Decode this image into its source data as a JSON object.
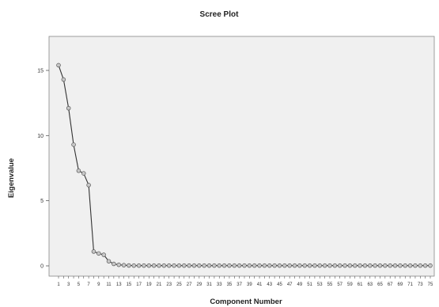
{
  "chart_data": {
    "type": "line",
    "title": "Scree Plot",
    "xlabel": "Component Number",
    "ylabel": "Eigenvalue",
    "ylim": [
      0,
      16
    ],
    "yticks": [
      0,
      5,
      10,
      15
    ],
    "x": [
      1,
      2,
      3,
      4,
      5,
      6,
      7,
      8,
      9,
      10,
      11,
      12,
      13,
      14,
      15,
      16,
      17,
      18,
      19,
      20,
      21,
      22,
      23,
      24,
      25,
      26,
      27,
      28,
      29,
      30,
      31,
      32,
      33,
      34,
      35,
      36,
      37,
      38,
      39,
      40,
      41,
      42,
      43,
      44,
      45,
      46,
      47,
      48,
      49,
      50,
      51,
      52,
      53,
      54,
      55,
      56,
      57,
      58,
      59,
      60,
      61,
      62,
      63,
      64,
      65,
      66,
      67,
      68,
      69,
      70,
      71,
      72,
      73,
      74,
      75
    ],
    "xtick_labels": [
      "1",
      "3",
      "5",
      "7",
      "9",
      "11",
      "13",
      "15",
      "17",
      "19",
      "21",
      "23",
      "25",
      "27",
      "29",
      "31",
      "33",
      "35",
      "37",
      "39",
      "41",
      "43",
      "45",
      "47",
      "49",
      "51",
      "53",
      "55",
      "57",
      "59",
      "61",
      "63",
      "65",
      "67",
      "69",
      "71",
      "73",
      "75"
    ],
    "values": [
      15.4,
      14.3,
      12.1,
      9.3,
      7.3,
      7.1,
      6.2,
      1.1,
      0.95,
      0.85,
      0.35,
      0.15,
      0.08,
      0.05,
      0.03,
      0.02,
      0.02,
      0.02,
      0.02,
      0.02,
      0.02,
      0.02,
      0.02,
      0.02,
      0.02,
      0.02,
      0.02,
      0.02,
      0.02,
      0.02,
      0.02,
      0.02,
      0.02,
      0.02,
      0.02,
      0.02,
      0.02,
      0.02,
      0.02,
      0.02,
      0.02,
      0.02,
      0.02,
      0.02,
      0.02,
      0.02,
      0.02,
      0.02,
      0.02,
      0.02,
      0.02,
      0.02,
      0.02,
      0.02,
      0.02,
      0.02,
      0.02,
      0.02,
      0.02,
      0.02,
      0.02,
      0.02,
      0.02,
      0.02,
      0.02,
      0.02,
      0.02,
      0.02,
      0.02,
      0.02,
      0.02,
      0.02,
      0.02,
      0.02,
      0.02
    ],
    "grid": false,
    "colors": {
      "plot_background": "#f0f0f0",
      "line": "#333333",
      "marker_fill": "#c8c8c8",
      "marker_stroke": "#555555"
    }
  }
}
